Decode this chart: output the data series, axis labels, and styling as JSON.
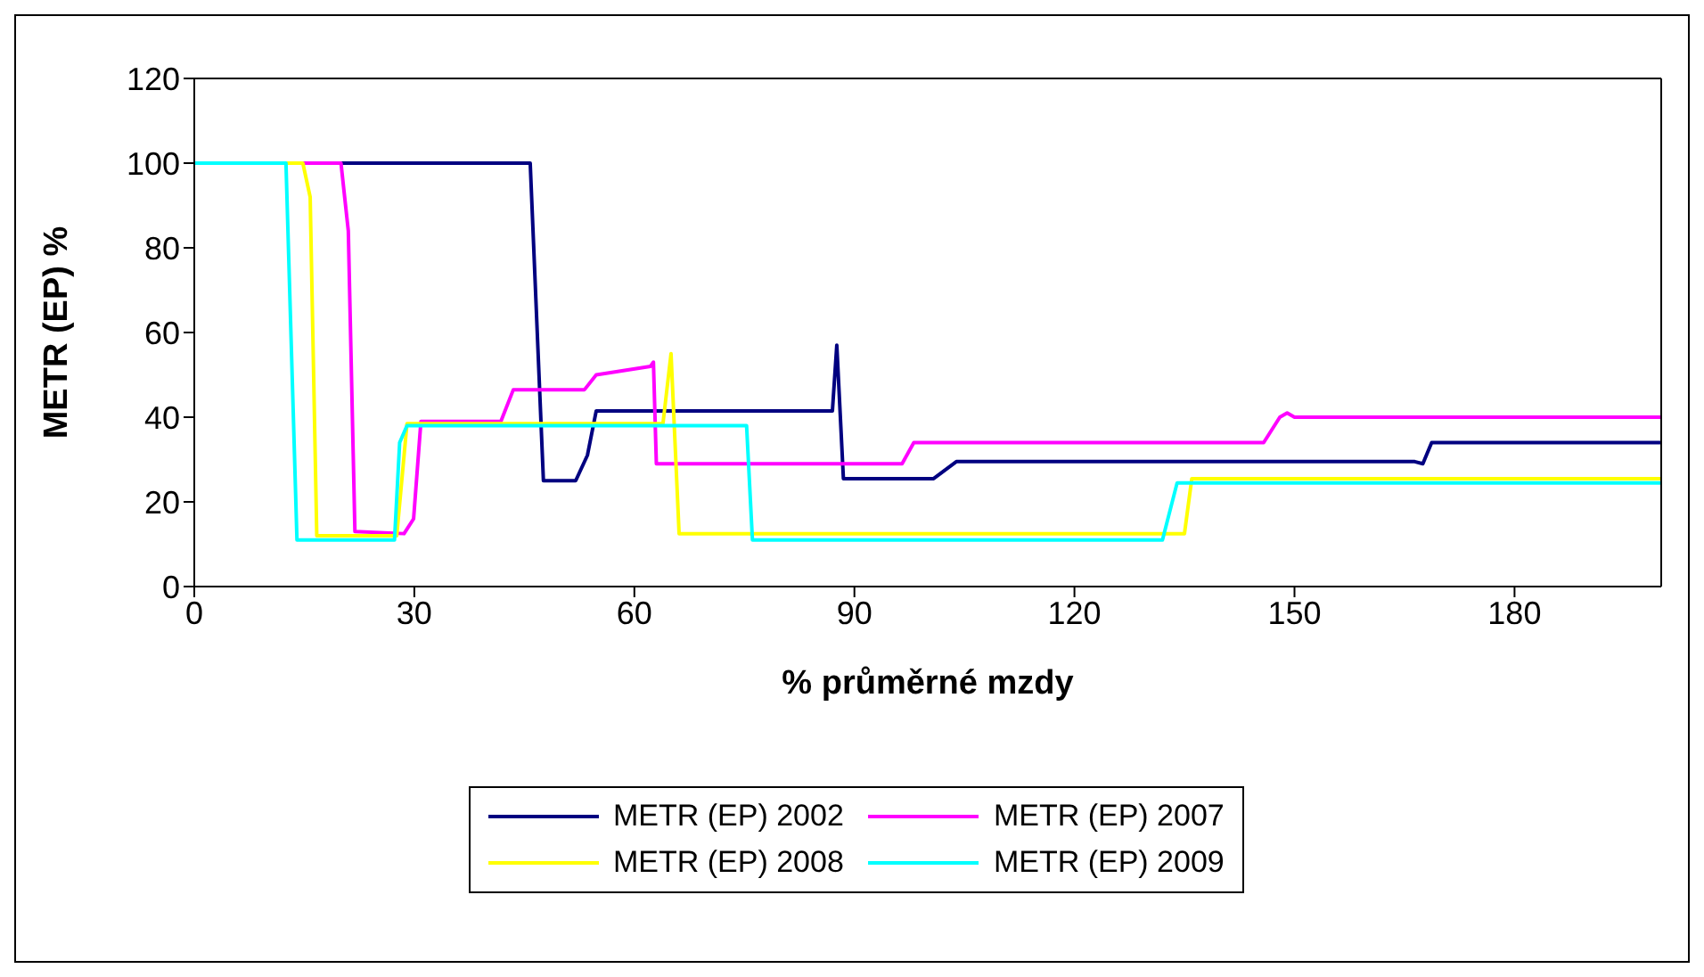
{
  "chart_data": {
    "type": "line",
    "xlabel": "% průměrné mzdy",
    "ylabel": "METR (EP) %",
    "xlim": [
      0,
      200
    ],
    "xticks": [
      0,
      30,
      60,
      90,
      120,
      150,
      180
    ],
    "ylim": [
      0,
      120
    ],
    "yticks": [
      0,
      20,
      40,
      60,
      80,
      100,
      120
    ],
    "grid": false,
    "legend": "bottom",
    "marker": "none",
    "line_style": "solid",
    "series": [
      {
        "name": "METR (EP) 2002",
        "color": "#000080",
        "x": [
          0,
          45.8,
          47.6,
          52,
          53.6,
          54.8,
          87,
          87.6,
          88.5,
          100.8,
          103.9,
          166.4,
          167.5,
          168.7,
          200
        ],
        "values": [
          100,
          100,
          25,
          25,
          31,
          41.5,
          41.5,
          57,
          25.5,
          25.5,
          29.5,
          29.5,
          29,
          34,
          34
        ]
      },
      {
        "name": "METR (EP) 2007",
        "color": "#ff00ff",
        "x": [
          0,
          20,
          21,
          21.9,
          28.6,
          29.9,
          30.9,
          41.8,
          43.5,
          53.2,
          54.8,
          62.2,
          62.6,
          63,
          96.5,
          98.1,
          145.8,
          148,
          149,
          150,
          200
        ],
        "values": [
          100,
          100,
          84,
          13,
          12.5,
          16,
          39,
          39,
          46.5,
          46.5,
          50,
          52,
          53,
          29,
          29,
          34,
          34,
          40,
          41,
          40,
          40
        ]
      },
      {
        "name": "METR (EP) 2008",
        "color": "#ffff00",
        "x": [
          0,
          14.8,
          15.8,
          16.7,
          27.6,
          29,
          63.9,
          65,
          66.1,
          135,
          136,
          200
        ],
        "values": [
          100,
          100,
          92,
          12,
          12,
          38.5,
          38.5,
          55,
          12.5,
          12.5,
          25.5,
          25.5
        ]
      },
      {
        "name": "METR (EP) 2009",
        "color": "#00ffff",
        "x": [
          0,
          12.5,
          14,
          27.3,
          28,
          29,
          75.3,
          76.1,
          132,
          134,
          200
        ],
        "values": [
          100,
          100,
          11,
          11,
          34,
          38,
          38,
          11,
          11,
          24.5,
          24.5
        ]
      }
    ]
  }
}
